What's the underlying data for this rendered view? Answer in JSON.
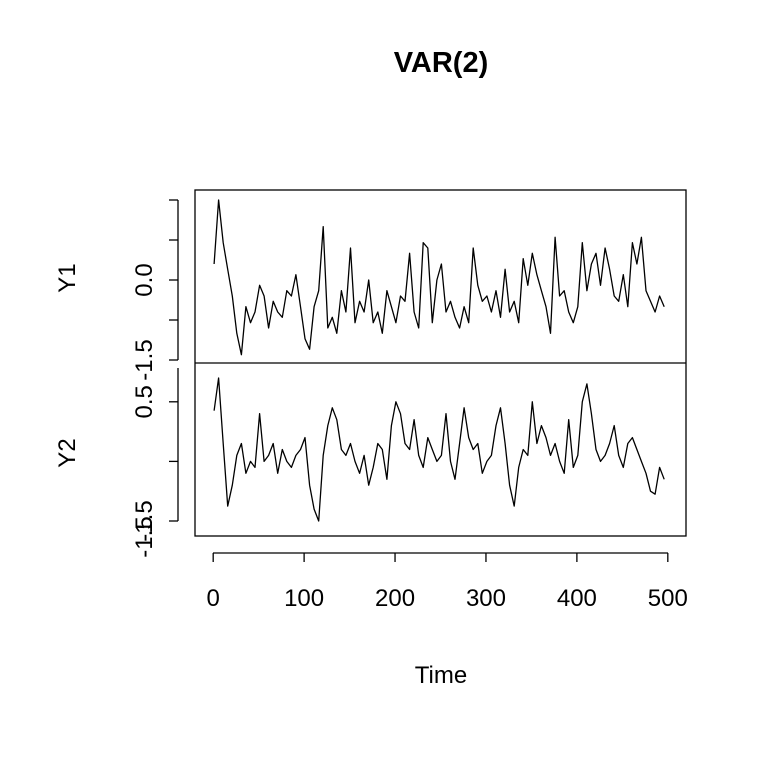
{
  "chart_data": {
    "type": "line",
    "title": "VAR(2)",
    "xlabel": "Time",
    "x_ticks": [
      0,
      100,
      200,
      300,
      400,
      500
    ],
    "xlim": [
      -20,
      520
    ],
    "x_start": 1,
    "x_step": 5,
    "panels": [
      {
        "name": "Y1",
        "ylim": [
          -1.5,
          1.5
        ],
        "y_ticks": [
          -1.5,
          -0.75,
          0.0,
          0.75,
          1.5
        ],
        "y_tick_labels": [
          "-1.5",
          "",
          "0.0",
          "",
          ""
        ],
        "values": [
          0.3,
          1.5,
          0.7,
          0.2,
          -0.3,
          -1.0,
          -1.4,
          -0.5,
          -0.8,
          -0.6,
          -0.1,
          -0.3,
          -0.9,
          -0.4,
          -0.6,
          -0.7,
          -0.2,
          -0.3,
          0.1,
          -0.5,
          -1.1,
          -1.3,
          -0.5,
          -0.2,
          1.0,
          -0.9,
          -0.7,
          -1.0,
          -0.2,
          -0.6,
          0.6,
          -0.8,
          -0.4,
          -0.6,
          0.0,
          -0.8,
          -0.6,
          -1.0,
          -0.2,
          -0.5,
          -0.8,
          -0.3,
          -0.4,
          0.5,
          -0.6,
          -0.9,
          0.7,
          0.6,
          -0.8,
          0.0,
          0.3,
          -0.6,
          -0.4,
          -0.7,
          -0.9,
          -0.5,
          -0.8,
          0.6,
          -0.1,
          -0.4,
          -0.3,
          -0.6,
          -0.2,
          -0.7,
          0.2,
          -0.6,
          -0.4,
          -0.8,
          0.4,
          -0.1,
          0.5,
          0.1,
          -0.2,
          -0.5,
          -1.0,
          0.8,
          -0.3,
          -0.2,
          -0.6,
          -0.8,
          -0.5,
          0.7,
          -0.2,
          0.3,
          0.5,
          -0.1,
          0.6,
          0.2,
          -0.3,
          -0.4,
          0.1,
          -0.5,
          0.7,
          0.3,
          0.8,
          -0.2,
          -0.4,
          -0.6,
          -0.3,
          -0.5
        ]
      },
      {
        "name": "Y2",
        "ylim": [
          -1.5,
          1.0
        ],
        "y_ticks": [
          -1.5,
          -0.5,
          0.5
        ],
        "y_tick_labels": [
          "-1.5",
          "",
          "0.5"
        ],
        "extra_tick_label": "-1.5",
        "values": [
          0.35,
          0.9,
          -0.2,
          -1.25,
          -0.9,
          -0.4,
          -0.2,
          -0.7,
          -0.5,
          -0.6,
          0.3,
          -0.5,
          -0.4,
          -0.2,
          -0.7,
          -0.3,
          -0.5,
          -0.6,
          -0.4,
          -0.3,
          -0.1,
          -0.9,
          -1.3,
          -1.5,
          -0.4,
          0.1,
          0.4,
          0.2,
          -0.3,
          -0.4,
          -0.2,
          -0.5,
          -0.7,
          -0.4,
          -0.9,
          -0.6,
          -0.2,
          -0.3,
          -0.8,
          0.1,
          0.5,
          0.3,
          -0.2,
          -0.3,
          0.2,
          -0.4,
          -0.6,
          -0.1,
          -0.3,
          -0.5,
          -0.4,
          0.3,
          -0.5,
          -0.8,
          -0.2,
          0.4,
          -0.1,
          -0.3,
          -0.2,
          -0.7,
          -0.5,
          -0.4,
          0.1,
          0.4,
          -0.2,
          -0.9,
          -1.25,
          -0.6,
          -0.3,
          -0.4,
          0.5,
          -0.2,
          0.1,
          -0.1,
          -0.4,
          -0.2,
          -0.5,
          -0.7,
          0.2,
          -0.6,
          -0.4,
          0.5,
          0.8,
          0.3,
          -0.3,
          -0.5,
          -0.4,
          -0.2,
          0.1,
          -0.4,
          -0.6,
          -0.2,
          -0.1,
          -0.3,
          -0.5,
          -0.7,
          -1.0,
          -1.05,
          -0.6,
          -0.8
        ]
      }
    ]
  }
}
